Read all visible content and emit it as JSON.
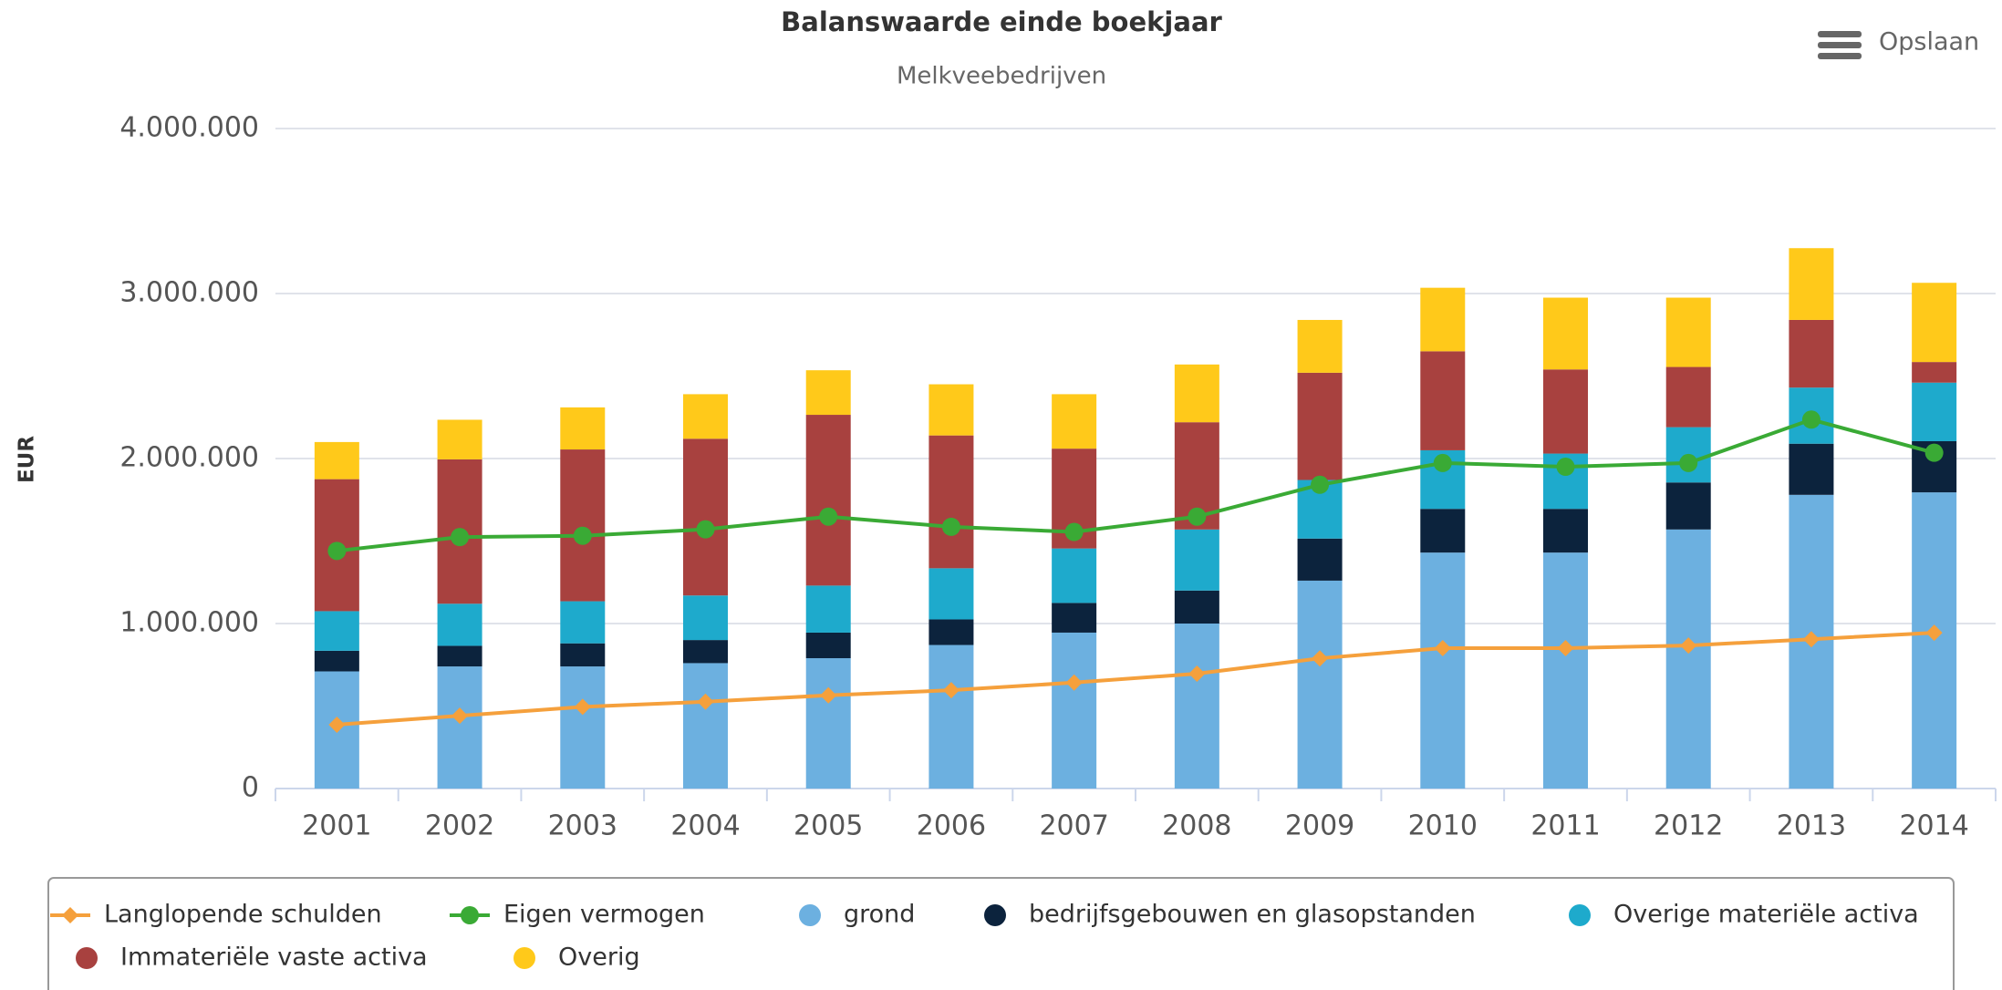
{
  "chart_data": {
    "type": "bar",
    "title": "Balanswaarde einde boekjaar",
    "subtitle": "Melkveebedrijven",
    "y_label": "EUR",
    "menu_label": "Opslaan",
    "categories": [
      "2001",
      "2002",
      "2003",
      "2004",
      "2005",
      "2006",
      "2007",
      "2008",
      "2009",
      "2010",
      "2011",
      "2012",
      "2013",
      "2014"
    ],
    "ylim": [
      0,
      4000000
    ],
    "yticks": [
      0,
      {
        "value": 1000000,
        "label": "1.000.000"
      },
      {
        "value": 2000000,
        "label": "2.000.000"
      },
      {
        "value": 3000000,
        "label": "3.000.000"
      },
      {
        "value": 4000000,
        "label": "4.000.000"
      }
    ],
    "grid": true,
    "stacked": true,
    "legend": "bottom",
    "series": [
      {
        "name": "Langlopende schulden",
        "type": "line",
        "marker": "diamond",
        "color": "#f5a03c",
        "values": [
          387000,
          441000,
          495000,
          526000,
          565000,
          596000,
          642000,
          696000,
          789000,
          851000,
          851000,
          867000,
          905000,
          944000
        ]
      },
      {
        "name": "Eigen vermogen",
        "type": "line",
        "marker": "circle",
        "color": "#3aaa35",
        "values": [
          1440000,
          1524000,
          1532000,
          1571000,
          1648000,
          1586000,
          1555000,
          1648000,
          1841000,
          1973000,
          1950000,
          1973000,
          2236000,
          2035000
        ]
      },
      {
        "name": "grond",
        "type": "bar",
        "color": "#6cb0e0",
        "values": [
          710000,
          740000,
          740000,
          760000,
          790000,
          870000,
          945000,
          1000000,
          1260000,
          1430000,
          1430000,
          1570000,
          1780000,
          1795000
        ]
      },
      {
        "name": "bedrijfsgebouwen en glasopstanden",
        "type": "bar",
        "color": "#0c233d",
        "values": [
          125000,
          125000,
          140000,
          140000,
          155000,
          155000,
          180000,
          200000,
          255000,
          265000,
          265000,
          285000,
          310000,
          310000
        ]
      },
      {
        "name": "Overige materiële activa",
        "type": "bar",
        "color": "#1eaacc",
        "values": [
          240000,
          255000,
          255000,
          270000,
          285000,
          310000,
          330000,
          370000,
          355000,
          355000,
          335000,
          335000,
          340000,
          355000
        ]
      },
      {
        "name": "Immateriële vaste activa",
        "type": "bar",
        "color": "#a8413f",
        "values": [
          800000,
          875000,
          920000,
          950000,
          1035000,
          805000,
          605000,
          650000,
          650000,
          600000,
          510000,
          365000,
          410000,
          125000
        ]
      },
      {
        "name": "Overig",
        "type": "bar",
        "color": "#ffc91a",
        "values": [
          225000,
          240000,
          255000,
          270000,
          270000,
          310000,
          330000,
          350000,
          320000,
          385000,
          435000,
          420000,
          435000,
          480000
        ]
      }
    ]
  }
}
